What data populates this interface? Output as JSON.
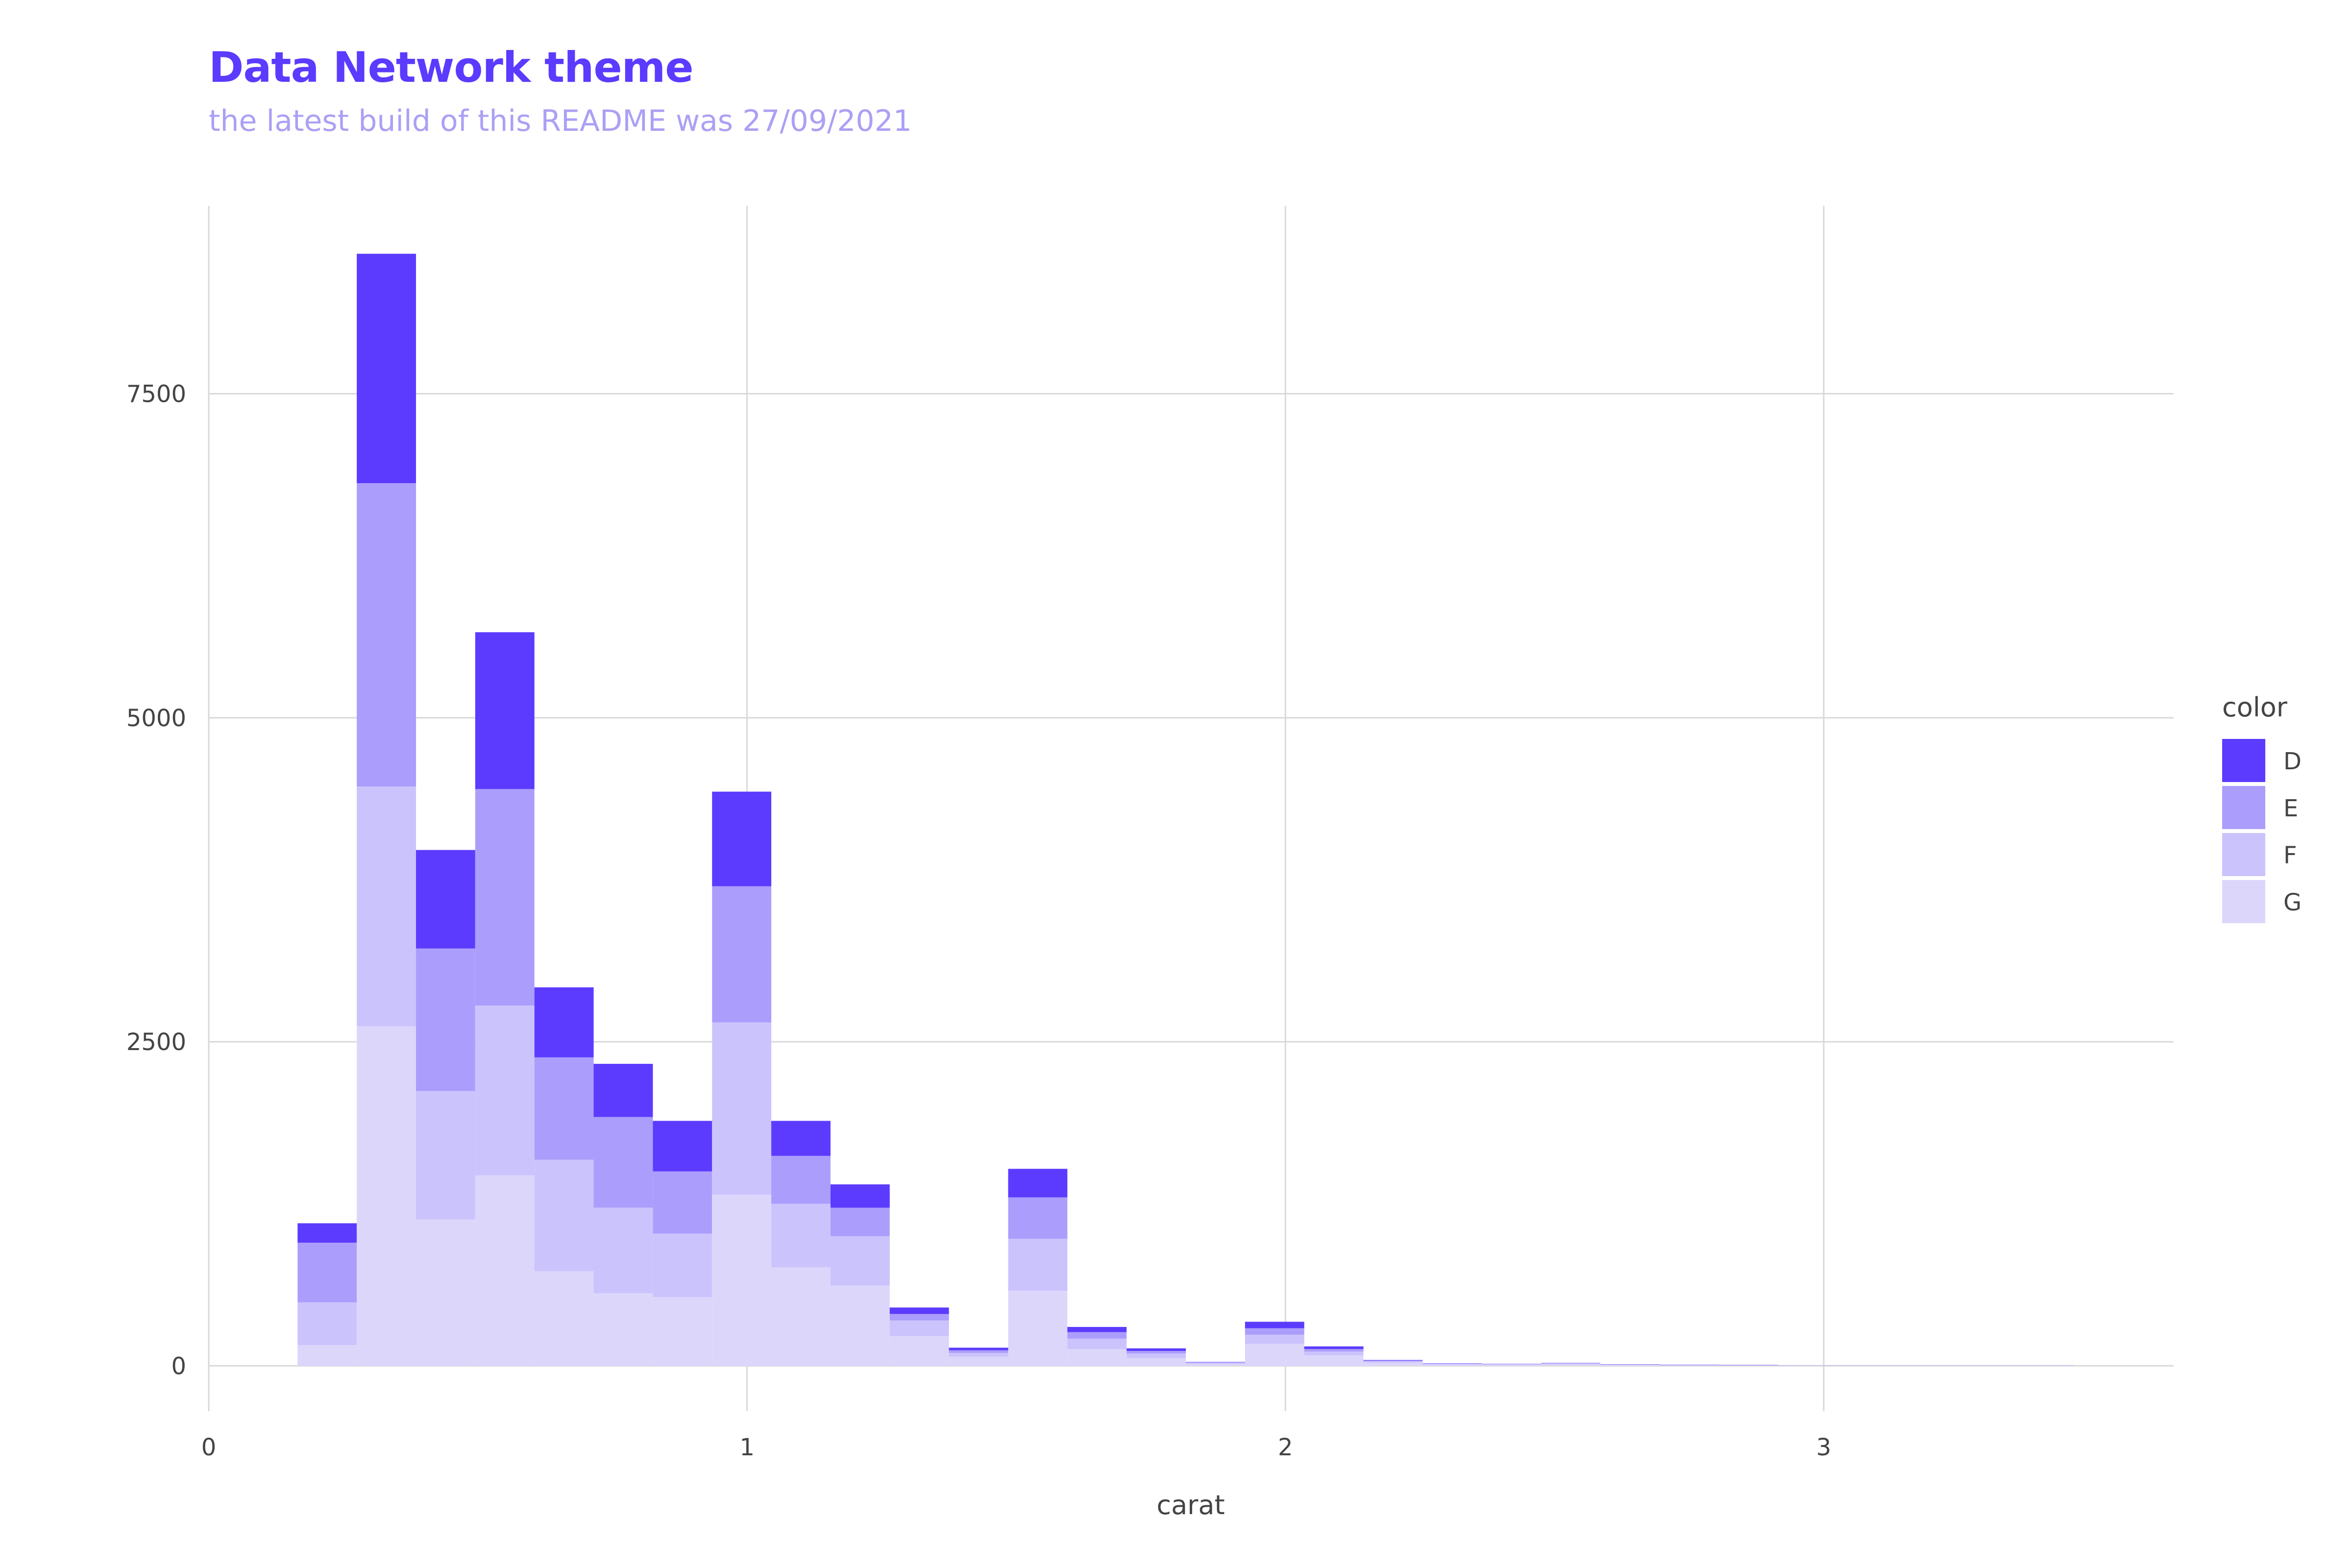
{
  "title": "Data Network theme",
  "subtitle": "the latest build of this README was 27/09/2021",
  "chart_data": {
    "type": "bar",
    "stacked": true,
    "xlabel": "carat",
    "ylabel": "",
    "xlim": [
      0,
      3.65
    ],
    "ylim": [
      -350,
      8950
    ],
    "x_ticks": [
      0,
      1,
      2,
      3
    ],
    "x_tick_labels": [
      "0",
      "1",
      "2",
      "3"
    ],
    "y_ticks": [
      0,
      2500,
      5000,
      7500
    ],
    "y_tick_labels": [
      "0",
      "2500",
      "5000",
      "7500"
    ],
    "grid": true,
    "bin_width": 0.11,
    "legend": {
      "title": "color",
      "placement": "right"
    },
    "bins": [
      0.22,
      0.33,
      0.44,
      0.55,
      0.66,
      0.77,
      0.88,
      0.99,
      1.1,
      1.21,
      1.32,
      1.43,
      1.54,
      1.65,
      1.76,
      1.87,
      1.98,
      2.09,
      2.2,
      2.31,
      2.42,
      2.53,
      2.64,
      2.75,
      2.86,
      2.97,
      3.08,
      3.19,
      3.3,
      3.41
    ],
    "series": [
      {
        "name": "G",
        "color": "#dcd6fb",
        "values": [
          160,
          2620,
          1130,
          1470,
          730,
          560,
          530,
          1320,
          760,
          620,
          230,
          70,
          580,
          130,
          60,
          15,
          170,
          80,
          25,
          10,
          8,
          12,
          6,
          5,
          3,
          2,
          2,
          2,
          2,
          2
        ]
      },
      {
        "name": "F",
        "color": "#cbc3fc",
        "values": [
          330,
          1850,
          990,
          1310,
          860,
          660,
          490,
          1330,
          490,
          380,
          120,
          30,
          400,
          80,
          35,
          8,
          70,
          30,
          10,
          5,
          4,
          5,
          3,
          2,
          2,
          1,
          1,
          1,
          1,
          1
        ]
      },
      {
        "name": "E",
        "color": "#ab9dfc",
        "values": [
          460,
          2340,
          1100,
          1670,
          790,
          700,
          480,
          1050,
          370,
          220,
          50,
          20,
          320,
          50,
          20,
          5,
          50,
          20,
          6,
          3,
          2,
          3,
          2,
          1,
          1,
          1,
          1,
          1,
          1,
          1
        ]
      },
      {
        "name": "D",
        "color": "#5c3bff",
        "values": [
          150,
          1770,
          760,
          1210,
          540,
          410,
          390,
          730,
          270,
          180,
          50,
          20,
          220,
          40,
          20,
          2,
          50,
          20,
          4,
          2,
          1,
          2,
          1,
          1,
          1,
          0,
          0,
          0,
          0,
          0
        ]
      }
    ]
  }
}
